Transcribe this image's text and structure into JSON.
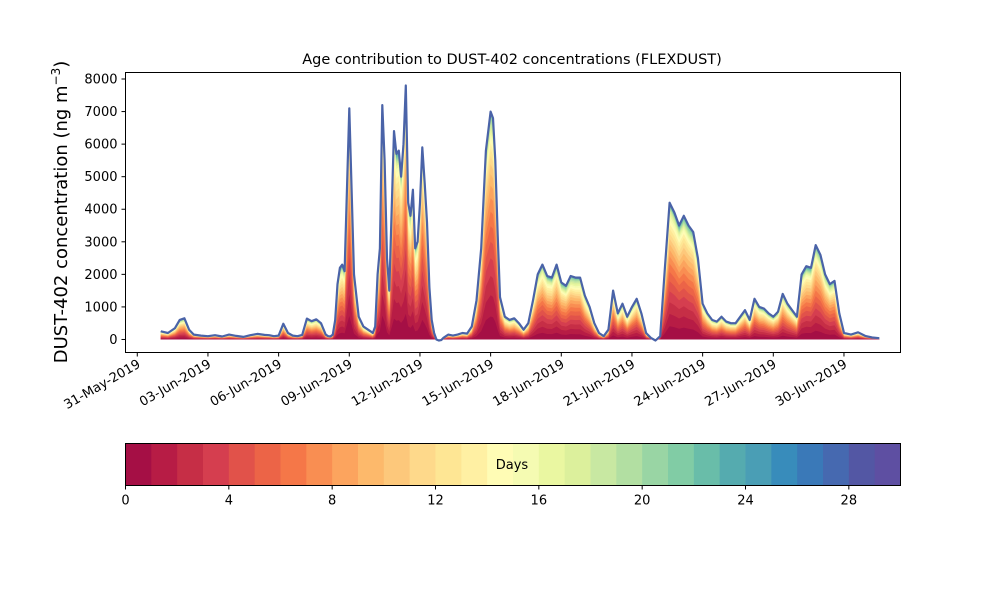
{
  "chart_data": {
    "type": "area",
    "stacked": true,
    "title": "Age contribution to DUST-402 concentrations (FLEXDUST)",
    "xlabel": "",
    "ylabel": "DUST-402 concentration (ng m",
    "ylabel_superscript": "−3",
    "ylabel_suffix": ")",
    "ylim": [
      -400,
      8200
    ],
    "yticks": [
      0,
      1000,
      2000,
      3000,
      4000,
      5000,
      6000,
      7000,
      8000
    ],
    "xlim_days_from_31may": [
      -0.5,
      32.4
    ],
    "xticks": [
      {
        "day": 0,
        "label": "31-May-2019"
      },
      {
        "day": 3,
        "label": "03-Jun-2019"
      },
      {
        "day": 6,
        "label": "06-Jun-2019"
      },
      {
        "day": 9,
        "label": "09-Jun-2019"
      },
      {
        "day": 12,
        "label": "12-Jun-2019"
      },
      {
        "day": 15,
        "label": "15-Jun-2019"
      },
      {
        "day": 18,
        "label": "18-Jun-2019"
      },
      {
        "day": 21,
        "label": "21-Jun-2019"
      },
      {
        "day": 24,
        "label": "24-Jun-2019"
      },
      {
        "day": 27,
        "label": "27-Jun-2019"
      },
      {
        "day": 30,
        "label": "30-Jun-2019"
      }
    ],
    "grid": false,
    "total_concentration": {
      "x_days_from_31may": [
        1.0,
        1.3,
        1.6,
        1.8,
        2.0,
        2.2,
        2.4,
        2.7,
        3.0,
        3.3,
        3.6,
        3.9,
        4.2,
        4.5,
        4.8,
        5.1,
        5.4,
        5.6,
        5.8,
        6.0,
        6.2,
        6.4,
        6.6,
        6.8,
        7.0,
        7.2,
        7.4,
        7.6,
        7.8,
        8.0,
        8.1,
        8.2,
        8.3,
        8.4,
        8.5,
        8.6,
        8.7,
        8.8,
        9.0,
        9.2,
        9.4,
        9.6,
        9.8,
        9.9,
        10.0,
        10.1,
        10.2,
        10.3,
        10.4,
        10.5,
        10.6,
        10.7,
        10.8,
        10.9,
        11.0,
        11.1,
        11.2,
        11.3,
        11.4,
        11.5,
        11.6,
        11.7,
        11.8,
        11.9,
        12.0,
        12.1,
        12.2,
        12.3,
        12.4,
        12.5,
        12.6,
        12.7,
        12.8,
        12.9,
        13.0,
        13.2,
        13.4,
        13.6,
        13.8,
        14.0,
        14.2,
        14.4,
        14.6,
        14.8,
        15.0,
        15.1,
        15.2,
        15.3,
        15.4,
        15.6,
        15.8,
        16.0,
        16.2,
        16.4,
        16.6,
        16.8,
        17.0,
        17.2,
        17.4,
        17.6,
        17.8,
        18.0,
        18.2,
        18.4,
        18.6,
        18.8,
        19.0,
        19.2,
        19.4,
        19.6,
        19.8,
        20.0,
        20.2,
        20.4,
        20.6,
        20.8,
        21.0,
        21.2,
        21.4,
        21.6,
        21.8,
        22.0,
        22.2,
        22.4,
        22.6,
        22.8,
        23.0,
        23.2,
        23.4,
        23.6,
        23.8,
        24.0,
        24.2,
        24.4,
        24.6,
        24.8,
        25.0,
        25.2,
        25.4,
        25.6,
        25.8,
        26.0,
        26.2,
        26.4,
        26.6,
        26.8,
        27.0,
        27.2,
        27.4,
        27.6,
        27.8,
        28.0,
        28.2,
        28.4,
        28.6,
        28.8,
        29.0,
        29.2,
        29.4,
        29.6,
        29.8,
        30.0,
        30.3,
        30.6,
        30.9,
        31.2,
        31.5
      ],
      "values": [
        250,
        200,
        350,
        600,
        650,
        300,
        150,
        120,
        100,
        130,
        90,
        150,
        110,
        80,
        130,
        170,
        140,
        130,
        100,
        120,
        480,
        200,
        120,
        100,
        140,
        640,
        560,
        620,
        500,
        150,
        100,
        90,
        150,
        600,
        1700,
        2200,
        2300,
        2100,
        7100,
        2000,
        700,
        400,
        300,
        250,
        200,
        400,
        2000,
        2800,
        7200,
        5500,
        2500,
        1500,
        4000,
        6400,
        5700,
        5800,
        5000,
        6000,
        7800,
        4200,
        3800,
        4600,
        2800,
        3000,
        4200,
        5900,
        4800,
        3600,
        1600,
        600,
        200,
        0,
        -30,
        -20,
        50,
        150,
        120,
        150,
        200,
        180,
        400,
        1200,
        2800,
        5800,
        7000,
        6800,
        5500,
        3200,
        1300,
        700,
        600,
        650,
        500,
        300,
        500,
        1200,
        2000,
        2300,
        1950,
        1900,
        2300,
        1750,
        1650,
        1950,
        1900,
        1900,
        1350,
        1000,
        500,
        200,
        100,
        300,
        1500,
        800,
        1100,
        700,
        1000,
        1250,
        800,
        200,
        50,
        -30,
        100,
        2200,
        4200,
        3900,
        3500,
        3800,
        3500,
        3300,
        2500,
        1100,
        800,
        600,
        550,
        700,
        550,
        500,
        500,
        700,
        900,
        600,
        1250,
        1000,
        950,
        800,
        700,
        850,
        1400,
        1100,
        900,
        700,
        2000,
        2250,
        2200,
        2900,
        2600,
        2000,
        1700,
        1800,
        800,
        200,
        150,
        220,
        110,
        60,
        40,
        70
      ]
    },
    "colorbar": {
      "label": "Days",
      "range": [
        0,
        30
      ],
      "n_bins": 30,
      "ticks": [
        0,
        4,
        8,
        12,
        16,
        20,
        24,
        28
      ],
      "colormap": "Spectral",
      "colors": [
        "#a50f45",
        "#b71c45",
        "#c62e46",
        "#d53e4f",
        "#e1524a",
        "#ec6447",
        "#f57748",
        "#f98e52",
        "#fca45e",
        "#fdb96b",
        "#fdc87b",
        "#fed98b",
        "#fee694",
        "#fff0a3",
        "#fffcb5",
        "#f5fbb2",
        "#eaf7a1",
        "#dcf09c",
        "#c8e8a2",
        "#b2dfa2",
        "#99d5a4",
        "#81cca5",
        "#69bda9",
        "#55abaf",
        "#4a9eb5",
        "#388cbb",
        "#3a79b8",
        "#4669b0",
        "#5357a4",
        "#5e4fa2"
      ]
    },
    "outline_color": "#4a63a8"
  }
}
